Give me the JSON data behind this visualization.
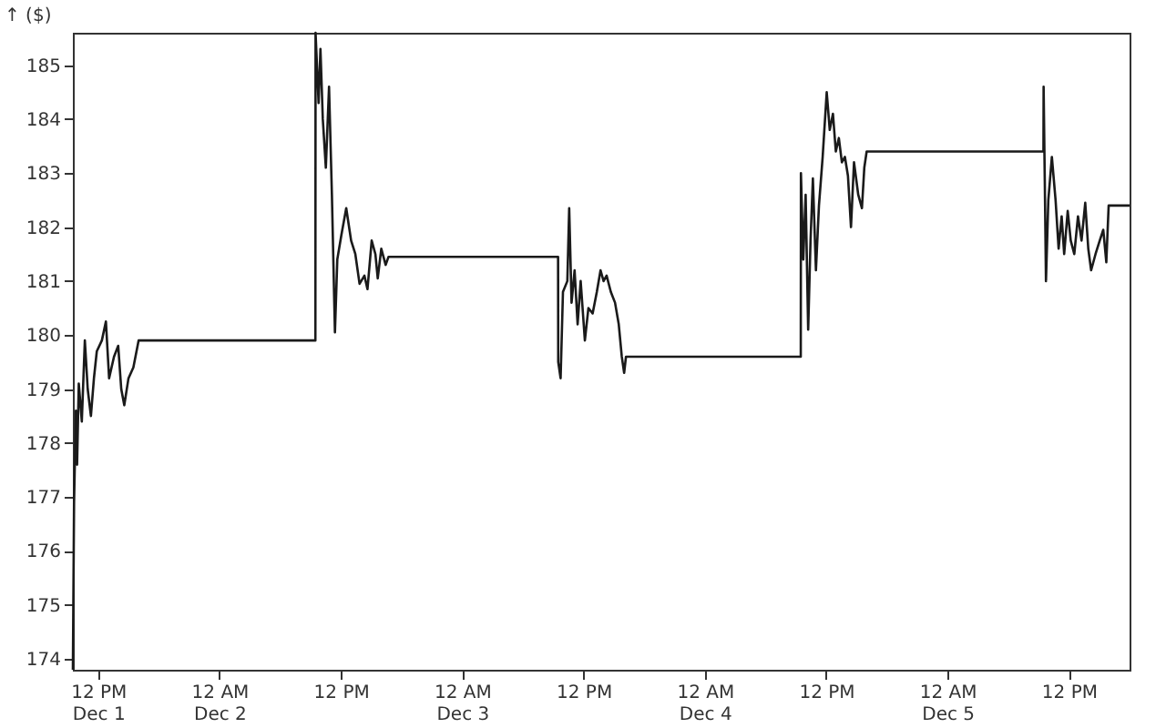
{
  "chart_data": {
    "type": "line",
    "ylabel": "↑ ($)",
    "marker": "none",
    "grid": false,
    "xlim": [
      "--12-01T09:30",
      "--12-05T18:00"
    ],
    "ylim": [
      173.8,
      185.6
    ],
    "yticks": [
      174,
      175,
      176,
      177,
      178,
      179,
      180,
      181,
      182,
      183,
      184,
      185
    ],
    "xticks": [
      {
        "value": "--12-01T12:00",
        "label": "12 PM\nDec 1"
      },
      {
        "value": "--12-02T00:00",
        "label": "12 AM\nDec 2"
      },
      {
        "value": "--12-02T12:00",
        "label": "12 PM"
      },
      {
        "value": "--12-03T00:00",
        "label": "12 AM\nDec 3"
      },
      {
        "value": "--12-03T12:00",
        "label": "12 PM"
      },
      {
        "value": "--12-04T00:00",
        "label": "12 AM\nDec 4"
      },
      {
        "value": "--12-04T12:00",
        "label": "12 PM"
      },
      {
        "value": "--12-05T00:00",
        "label": "12 AM\nDec 5"
      },
      {
        "value": "--12-05T12:00",
        "label": "12 PM"
      }
    ],
    "series": [
      {
        "color": "#1a1a1a",
        "line_style": "solid",
        "x": [
          "--12-01T09:30",
          "--12-01T09:37",
          "--12-01T09:48",
          "--12-01T09:55",
          "--12-01T10:05",
          "--12-01T10:23",
          "--12-01T10:41",
          "--12-01T10:58",
          "--12-01T11:17",
          "--12-01T11:35",
          "--12-01T11:52",
          "--12-01T12:22",
          "--12-01T12:46",
          "--12-01T13:05",
          "--12-01T13:34",
          "--12-01T13:59",
          "--12-01T14:17",
          "--12-01T14:35",
          "--12-01T15:00",
          "--12-01T15:29",
          "--12-01T16:00",
          "--12-02T09:29",
          "--12-02T09:30",
          "--12-02T09:48",
          "--12-02T09:59",
          "--12-02T10:13",
          "--12-02T10:31",
          "--12-02T10:50",
          "--12-02T11:07",
          "--12-02T11:25",
          "--12-02T11:39",
          "--12-02T12:03",
          "--12-02T12:32",
          "--12-02T13:01",
          "--12-02T13:26",
          "--12-02T13:51",
          "--12-02T14:20",
          "--12-02T14:38",
          "--12-02T15:03",
          "--12-02T15:25",
          "--12-02T15:39",
          "--12-02T16:00",
          "--12-02T16:26",
          "--12-02T16:43",
          "--12-03T09:29",
          "--12-03T09:30",
          "--12-03T09:44",
          "--12-03T09:58",
          "--12-03T10:24",
          "--12-03T10:35",
          "--12-03T10:49",
          "--12-03T11:07",
          "--12-03T11:25",
          "--12-03T11:43",
          "--12-03T12:08",
          "--12-03T12:29",
          "--12-03T12:54",
          "--12-03T13:19",
          "--12-03T13:41",
          "--12-03T13:59",
          "--12-03T14:17",
          "--12-03T14:42",
          "--12-03T15:07",
          "--12-03T15:29",
          "--12-03T15:47",
          "--12-03T16:01",
          "--12-03T16:12",
          "--12-04T09:29",
          "--12-04T09:30",
          "--12-04T09:44",
          "--12-04T09:58",
          "--12-04T10:13",
          "--12-04T10:27",
          "--12-04T10:41",
          "--12-04T10:59",
          "--12-04T11:17",
          "--12-04T11:39",
          "--12-04T12:03",
          "--12-04T12:21",
          "--12-04T12:40",
          "--12-04T12:57",
          "--12-04T13:15",
          "--12-04T13:33",
          "--12-04T13:51",
          "--12-04T14:09",
          "--12-04T14:27",
          "--12-04T14:45",
          "--12-04T15:10",
          "--12-04T15:32",
          "--12-04T15:46",
          "--12-04T16:00",
          "--12-04T16:21",
          "--12-05T09:29",
          "--12-05T09:30",
          "--12-05T09:37",
          "--12-05T09:44",
          "--12-05T09:58",
          "--12-05T10:19",
          "--12-05T10:41",
          "--12-05T10:59",
          "--12-05T11:17",
          "--12-05T11:32",
          "--12-05T11:53",
          "--12-05T12:11",
          "--12-05T12:32",
          "--12-05T12:54",
          "--12-05T13:15",
          "--12-05T13:37",
          "--12-05T13:55",
          "--12-05T14:12",
          "--12-05T14:38",
          "--12-05T15:03",
          "--12-05T15:24",
          "--12-05T15:42",
          "--12-05T15:56",
          "--12-05T18:00"
        ],
        "values": [
          173.8,
          176.9,
          178.6,
          177.6,
          179.1,
          178.4,
          179.9,
          179.0,
          178.5,
          179.2,
          179.7,
          179.9,
          180.25,
          179.2,
          179.6,
          179.8,
          179.0,
          178.7,
          179.2,
          179.4,
          179.9,
          179.9,
          185.6,
          184.3,
          185.3,
          184.0,
          183.1,
          184.6,
          182.6,
          180.05,
          181.4,
          181.85,
          182.35,
          181.75,
          181.5,
          180.95,
          181.1,
          180.85,
          181.75,
          181.5,
          181.05,
          181.6,
          181.3,
          181.45,
          181.45,
          179.5,
          179.2,
          180.8,
          181.0,
          182.35,
          180.6,
          181.2,
          180.2,
          181.0,
          179.9,
          180.5,
          180.4,
          180.8,
          181.2,
          181.0,
          181.1,
          180.8,
          180.6,
          180.2,
          179.6,
          179.3,
          179.6,
          179.6,
          183.0,
          181.4,
          182.6,
          180.1,
          181.75,
          182.9,
          181.2,
          182.4,
          183.3,
          184.5,
          183.8,
          184.1,
          183.4,
          183.65,
          183.2,
          183.3,
          182.95,
          182.0,
          183.2,
          182.6,
          182.35,
          183.1,
          183.4,
          183.4,
          183.4,
          184.6,
          182.85,
          181.0,
          182.5,
          183.3,
          182.5,
          181.6,
          182.2,
          181.5,
          182.3,
          181.75,
          181.5,
          182.2,
          181.75,
          182.45,
          181.6,
          181.2,
          181.5,
          181.75,
          181.95,
          181.35,
          182.4,
          182.4
        ]
      }
    ]
  }
}
